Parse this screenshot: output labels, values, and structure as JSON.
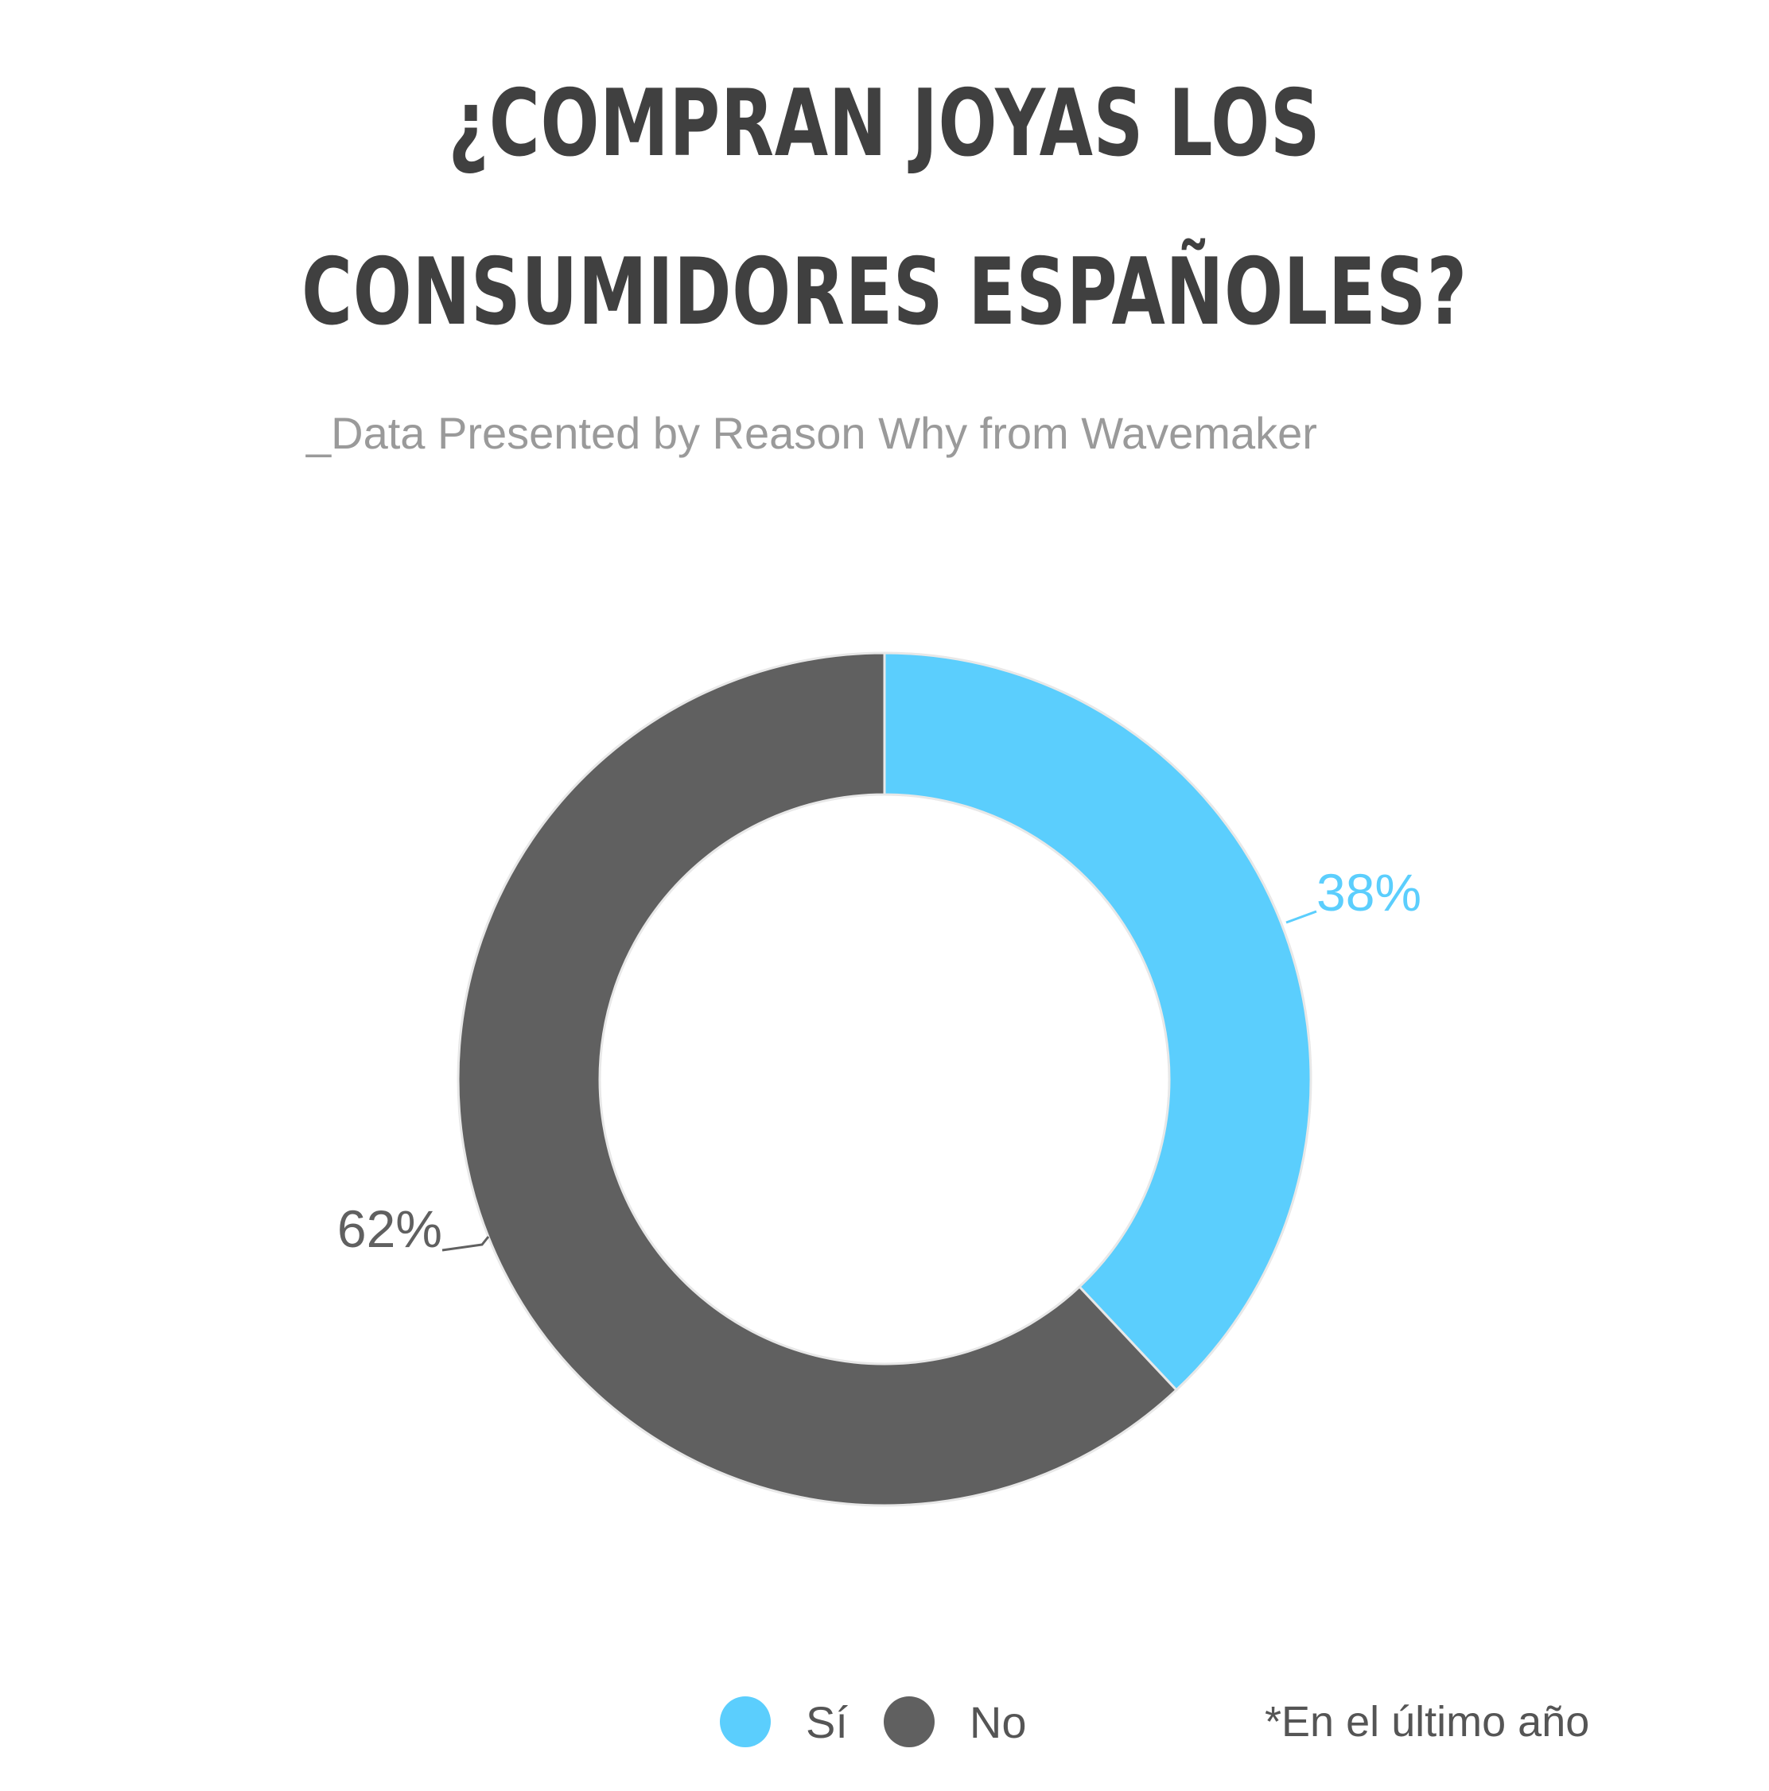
{
  "chart_data": {
    "type": "pie",
    "title": "¿COMPRAN JOYAS LOS CONSUMIDORES ESPAÑOLES?",
    "title_lines": [
      "¿COMPRAN JOYAS LOS",
      "CONSUMIDORES ESPAÑOLES?"
    ],
    "subtitle": "_Data Presented by Reason Why from Wavemaker",
    "donut": true,
    "slices": [
      {
        "label": "Sí",
        "value": 38,
        "display": "38%",
        "color": "#5BCEFD"
      },
      {
        "label": "No",
        "value": 62,
        "display": "62%",
        "color": "#606060"
      }
    ],
    "legend_position": "bottom",
    "footnote": "*En el último año"
  }
}
